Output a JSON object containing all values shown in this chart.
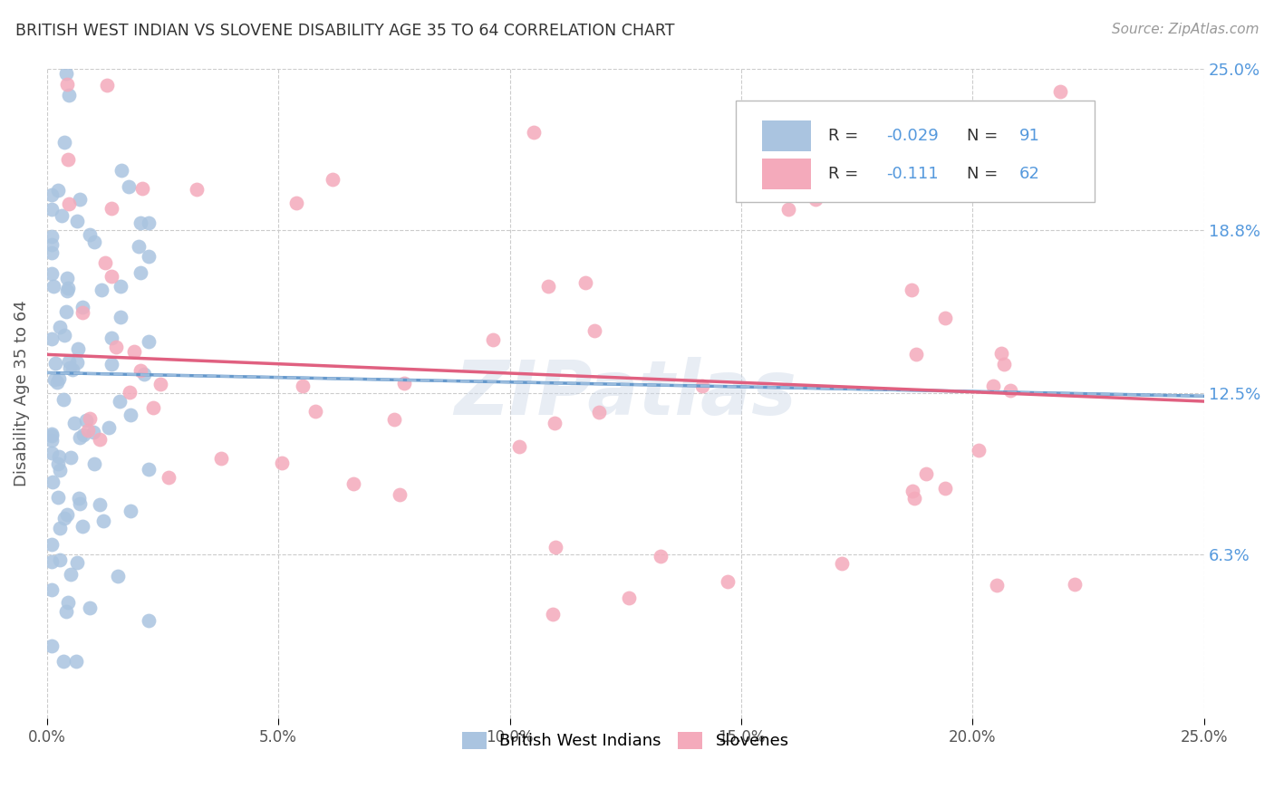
{
  "title": "BRITISH WEST INDIAN VS SLOVENE DISABILITY AGE 35 TO 64 CORRELATION CHART",
  "source": "Source: ZipAtlas.com",
  "ylabel": "Disability Age 35 to 64",
  "xlim": [
    0.0,
    0.25
  ],
  "ylim": [
    0.0,
    0.25
  ],
  "ytick_vals": [
    0.063,
    0.125,
    0.188,
    0.25
  ],
  "ytick_labels": [
    "6.3%",
    "12.5%",
    "18.8%",
    "25.0%"
  ],
  "color_blue": "#aac4e0",
  "color_pink": "#f4aabb",
  "trendline_blue_solid": "#6699cc",
  "trendline_pink_solid": "#e06080",
  "trendline_blue_dashed": "#99bbdd",
  "title_color": "#333333",
  "axis_label_color": "#5599dd",
  "source_color": "#999999",
  "watermark": "ZIPatlas",
  "legend_box_color": "#cccccc",
  "leg_r1": "R = -0.029",
  "leg_n1": "N = 91",
  "leg_r2": "R =  -0.111",
  "leg_n2": "N = 62",
  "bwi_seed": 12,
  "slov_seed": 7
}
